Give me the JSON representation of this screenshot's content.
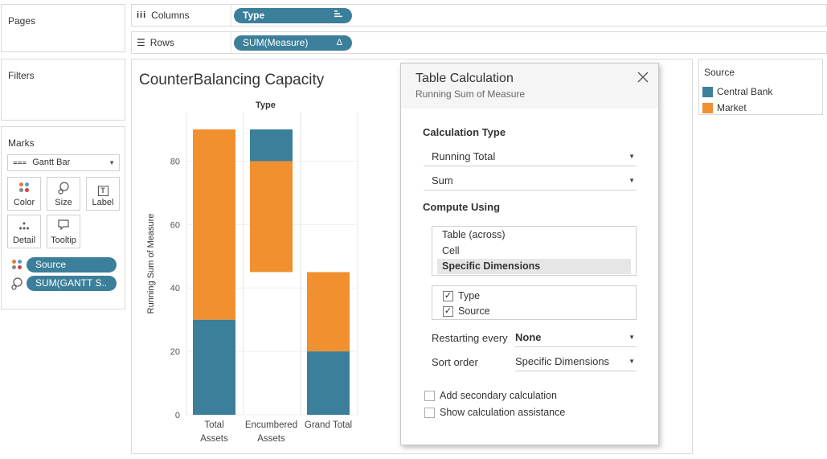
{
  "left_panels": {
    "pages_title": "Pages",
    "filters_title": "Filters",
    "marks_title": "Marks"
  },
  "shelves": {
    "columns": {
      "label": "Columns",
      "icon": "columns-icon",
      "pill": "Type",
      "pill_icon": "sort-descending-icon"
    },
    "rows": {
      "label": "Rows",
      "icon": "rows-icon",
      "pill": "SUM(Measure)",
      "pill_icon": "delta-icon",
      "pill_glyph": "Δ"
    }
  },
  "marks": {
    "mark_type": "Gantt Bar",
    "buttons": [
      {
        "label": "Color",
        "icon": "color-icon"
      },
      {
        "label": "Size",
        "icon": "size-icon"
      },
      {
        "label": "Label",
        "icon": "label-icon",
        "glyph": "T"
      },
      {
        "label": "Detail",
        "icon": "detail-icon"
      },
      {
        "label": "Tooltip",
        "icon": "tooltip-icon"
      }
    ],
    "fields": [
      {
        "label": "Source",
        "icon": "color-icon"
      },
      {
        "label": "SUM(GANTT S..",
        "icon": "size-icon"
      }
    ]
  },
  "chart": {
    "title": "CounterBalancing Capacity",
    "column_header": "Type"
  },
  "chart_data": {
    "type": "bar",
    "subtype": "stacked gantt",
    "title": "CounterBalancing Capacity",
    "column_header": "Type",
    "ylabel": "Running Sum of Measure",
    "ylim": [
      0,
      90
    ],
    "yticks": [
      0,
      20,
      40,
      60,
      80
    ],
    "categories": [
      "Total Assets",
      "Encumbered Assets",
      "Grand Total"
    ],
    "category_lines": [
      [
        "Total",
        "Assets"
      ],
      [
        "Encumbered",
        "Assets"
      ],
      [
        "Grand Total"
      ]
    ],
    "segments": [
      {
        "category": "Total Assets",
        "series": "Central Bank",
        "start": 0,
        "end": 30
      },
      {
        "category": "Total Assets",
        "series": "Market",
        "start": 30,
        "end": 90
      },
      {
        "category": "Encumbered Assets",
        "series": "Market",
        "start": 45,
        "end": 80
      },
      {
        "category": "Encumbered Assets",
        "series": "Central Bank",
        "start": 80,
        "end": 90
      },
      {
        "category": "Grand Total",
        "series": "Central Bank",
        "start": 0,
        "end": 20
      },
      {
        "category": "Grand Total",
        "series": "Market",
        "start": 20,
        "end": 45
      }
    ],
    "grid": true
  },
  "legend": {
    "title": "Source",
    "items": [
      {
        "name": "Central Bank",
        "color": "#3b7f9a"
      },
      {
        "name": "Market",
        "color": "#f0902f"
      }
    ]
  },
  "dialog": {
    "title": "Table Calculation",
    "subtitle": "Running Sum of Measure",
    "calc_type_label": "Calculation Type",
    "calc_type_value": "Running Total",
    "aggregation_value": "Sum",
    "compute_using_label": "Compute Using",
    "compute_options": [
      "Table (across)",
      "Cell",
      "Specific Dimensions"
    ],
    "dimensions": [
      {
        "label": "Type",
        "checked": "✓"
      },
      {
        "label": "Source",
        "checked": "✓"
      }
    ],
    "restarting_label": "Restarting every",
    "restarting_value": "None",
    "sort_label": "Sort order",
    "sort_value": "Specific Dimensions",
    "secondary_label": "Add secondary calculation",
    "assistance_label": "Show calculation assistance"
  }
}
